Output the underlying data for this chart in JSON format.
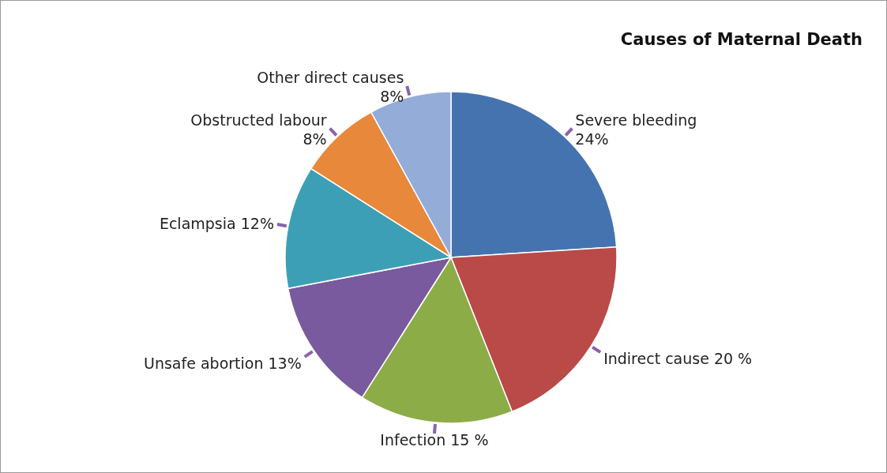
{
  "chart_data": {
    "type": "pie",
    "title": "Causes of Maternal Death",
    "categories": [
      "Severe bleeding",
      "Indirect cause",
      "Infection",
      "Unsafe abortion",
      "Eclampsia",
      "Obstructed labour",
      "Other direct causes"
    ],
    "values": [
      24,
      20,
      15,
      13,
      12,
      8,
      8
    ],
    "value_labels": [
      "24%",
      "20 %",
      "15 %",
      "13%",
      "12%",
      "8%",
      "8%"
    ],
    "colors": [
      "#4573b0",
      "#b94a48",
      "#8cac48",
      "#7a5a9e",
      "#3d9fb5",
      "#e8883a",
      "#94acd8"
    ]
  }
}
